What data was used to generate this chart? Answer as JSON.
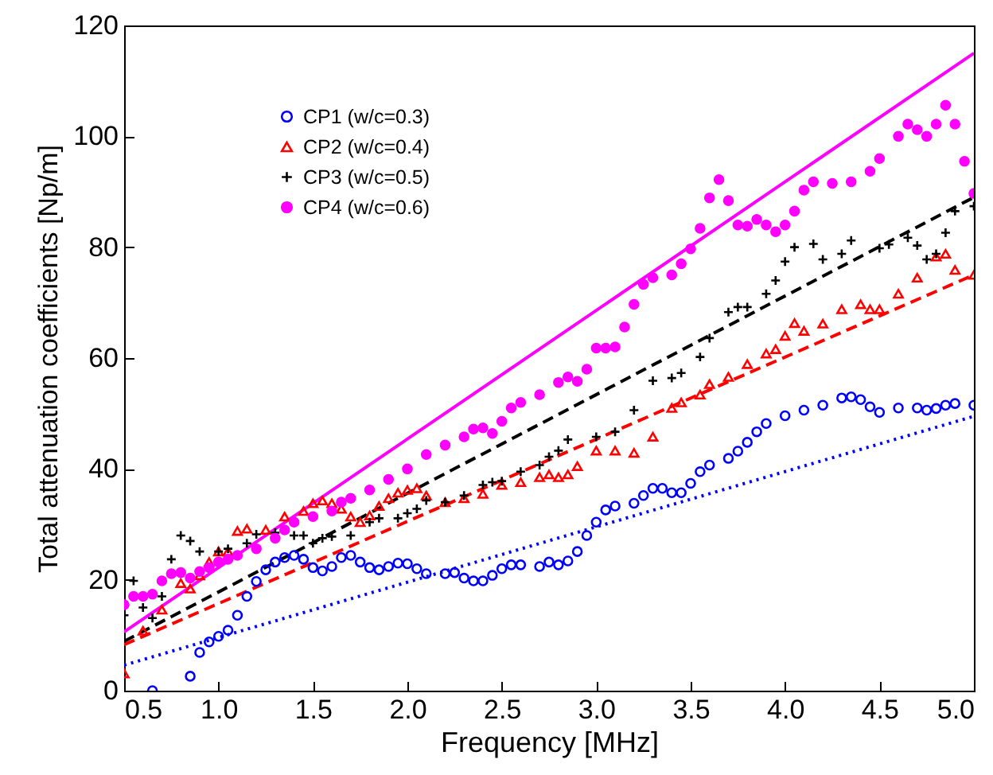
{
  "chart_data": {
    "type": "scatter",
    "xlabel": "Frequency [MHz]",
    "ylabel": "Total attenuation coefficients [Np/m]",
    "xlim": [
      0.5,
      5
    ],
    "xticks": [
      0.5,
      {
        "value": 1,
        "label": "1.0"
      },
      1.5,
      {
        "value": 2,
        "label": "2.0"
      },
      2.5,
      {
        "value": 3,
        "label": "3.0"
      },
      3.5,
      {
        "value": 4,
        "label": "4.0"
      },
      4.5,
      {
        "value": 5,
        "label": "5.0"
      }
    ],
    "ylim": [
      0,
      120
    ],
    "yticks": [
      0,
      20,
      40,
      60,
      80,
      100,
      120
    ],
    "grid": false,
    "legend": "top left",
    "series": [
      {
        "name": "CP1  (w/c=0.3)",
        "color": "#0000ff",
        "marker": "circle",
        "x": [
          0.65,
          0.85,
          0.9,
          0.95,
          1.0,
          1.05,
          1.1,
          1.15,
          1.2,
          1.25,
          1.3,
          1.35,
          1.4,
          1.45,
          1.5,
          1.55,
          1.6,
          1.65,
          1.7,
          1.75,
          1.8,
          1.85,
          1.9,
          1.95,
          2.0,
          2.05,
          2.1,
          2.2,
          2.25,
          2.3,
          2.35,
          2.4,
          2.45,
          2.5,
          2.55,
          2.6,
          2.7,
          2.75,
          2.8,
          2.85,
          2.9,
          2.95,
          3.0,
          3.05,
          3.1,
          3.2,
          3.25,
          3.3,
          3.35,
          3.4,
          3.45,
          3.5,
          3.55,
          3.6,
          3.7,
          3.75,
          3.8,
          3.85,
          3.9,
          4.0,
          4.1,
          4.2,
          4.3,
          4.35,
          4.4,
          4.45,
          4.5,
          4.6,
          4.7,
          4.75,
          4.8,
          4.85,
          4.9,
          5.0
        ],
        "values": [
          0,
          2.6,
          6.9,
          8.8,
          9.8,
          10.9,
          13.6,
          17,
          19.7,
          21.8,
          23.2,
          24,
          24.4,
          23.7,
          22.2,
          21.6,
          22.4,
          24,
          24.4,
          23.2,
          22.2,
          21.8,
          22.4,
          23,
          22.9,
          22,
          21.1,
          21.1,
          21.3,
          20.3,
          19.8,
          19.8,
          20.8,
          22,
          22.7,
          22.7,
          22.4,
          23.2,
          22.7,
          23.4,
          25.1,
          28,
          30.4,
          32.6,
          33.3,
          33.8,
          35.2,
          36.5,
          36.5,
          35.7,
          35.7,
          37.4,
          39.5,
          40.7,
          41.9,
          43.2,
          44.8,
          46.7,
          48.2,
          49.6,
          50.6,
          51.5,
          52.8,
          53,
          52.5,
          51.2,
          50.2,
          51,
          51,
          50.6,
          50.9,
          51.5,
          51.8,
          51.5
        ]
      },
      {
        "name": "CP2  (w/c=0.4)",
        "color": "#ff0000",
        "marker": "triangle",
        "x": [
          0.5,
          0.6,
          0.7,
          0.8,
          0.85,
          0.9,
          0.95,
          1.0,
          1.05,
          1.1,
          1.15,
          1.25,
          1.35,
          1.45,
          1.5,
          1.55,
          1.6,
          1.65,
          1.7,
          1.75,
          1.8,
          1.85,
          1.9,
          1.95,
          2.0,
          2.05,
          2.1,
          2.2,
          2.3,
          2.4,
          2.5,
          2.6,
          2.7,
          2.75,
          2.8,
          2.85,
          2.9,
          3.0,
          3.1,
          3.2,
          3.3,
          3.4,
          3.45,
          3.55,
          3.6,
          3.7,
          3.8,
          3.9,
          3.95,
          4.0,
          4.05,
          4.1,
          4.2,
          4.3,
          4.4,
          4.45,
          4.5,
          4.6,
          4.7,
          4.8,
          4.85,
          4.9,
          5.0
        ],
        "values": [
          3.1,
          10.8,
          14.6,
          19.4,
          18.4,
          20.8,
          23.2,
          25.1,
          25.1,
          28.8,
          29.2,
          29,
          31.4,
          32.4,
          33.8,
          34.3,
          33.8,
          32.8,
          31.4,
          30.4,
          31.6,
          33.3,
          34.7,
          35.7,
          36.2,
          36.5,
          35.2,
          34,
          34.7,
          35.5,
          37.1,
          37.6,
          38.5,
          39,
          38.5,
          39,
          40.5,
          43.3,
          43.3,
          42.9,
          45.8,
          51,
          52,
          53.4,
          55.3,
          56.6,
          58.9,
          60.8,
          61.6,
          64,
          66.3,
          64.9,
          66.2,
          68.8,
          69.7,
          68.8,
          68.8,
          71.6,
          74.5,
          78.3,
          78.8,
          75.9,
          75
        ]
      },
      {
        "name": "CP3  (w/c=0.5)",
        "color": "#000000",
        "marker": "cross",
        "x": [
          0.5,
          0.55,
          0.6,
          0.65,
          0.7,
          0.75,
          0.8,
          0.85,
          0.9,
          1.0,
          1.05,
          1.15,
          1.2,
          1.3,
          1.4,
          1.45,
          1.5,
          1.55,
          1.6,
          1.7,
          1.8,
          1.85,
          1.95,
          2.0,
          2.05,
          2.1,
          2.2,
          2.3,
          2.4,
          2.45,
          2.5,
          2.6,
          2.7,
          2.75,
          2.8,
          2.85,
          3.0,
          3.1,
          3.2,
          3.3,
          3.4,
          3.45,
          3.55,
          3.6,
          3.7,
          3.75,
          3.8,
          3.9,
          3.95,
          4.0,
          4.05,
          4.15,
          4.2,
          4.3,
          4.35,
          4.5,
          4.55,
          4.65,
          4.7,
          4.75,
          4.8,
          4.85,
          4.9,
          5.0
        ],
        "values": [
          13.6,
          19.8,
          15,
          13.1,
          17,
          23.7,
          28,
          27,
          25.1,
          25.1,
          25.6,
          26.6,
          28.2,
          28.5,
          28,
          28,
          26.6,
          27.5,
          27.8,
          28,
          30.4,
          31.1,
          31.1,
          32,
          32.8,
          34.3,
          34,
          35.2,
          37.1,
          37.6,
          37.8,
          39.5,
          40.7,
          42.2,
          43.3,
          45.3,
          45.8,
          46.7,
          50.6,
          55.9,
          56.4,
          57.3,
          60.2,
          63.6,
          68.3,
          69.2,
          69.2,
          71.6,
          74,
          77.4,
          80,
          80.6,
          77.8,
          78.8,
          81.2,
          79.8,
          80.5,
          81.7,
          80.3,
          77.8,
          78.8,
          82.6,
          86.5,
          87.4
        ]
      },
      {
        "name": "CP4  (w/c=0.6)",
        "color": "#ff00ff",
        "marker": "circle",
        "x": [
          0.5,
          0.55,
          0.6,
          0.65,
          0.7,
          0.75,
          0.8,
          0.85,
          0.9,
          0.95,
          1.0,
          1.05,
          1.1,
          1.2,
          1.3,
          1.35,
          1.4,
          1.5,
          1.6,
          1.65,
          1.7,
          1.8,
          1.9,
          2.0,
          2.1,
          2.2,
          2.3,
          2.35,
          2.4,
          2.45,
          2.5,
          2.55,
          2.6,
          2.7,
          2.8,
          2.85,
          2.9,
          2.95,
          3.0,
          3.05,
          3.1,
          3.15,
          3.2,
          3.25,
          3.3,
          3.4,
          3.45,
          3.5,
          3.55,
          3.6,
          3.65,
          3.7,
          3.75,
          3.8,
          3.85,
          3.9,
          3.95,
          4.0,
          4.05,
          4.1,
          4.15,
          4.25,
          4.35,
          4.45,
          4.5,
          4.6,
          4.65,
          4.7,
          4.75,
          4.8,
          4.85,
          4.9,
          4.95,
          5.0
        ],
        "values": [
          15.5,
          17,
          17,
          17.4,
          19.8,
          21.1,
          21.3,
          20.3,
          21.5,
          22.2,
          23.2,
          23.7,
          24.4,
          25.6,
          27.5,
          29,
          30.4,
          31.4,
          32.4,
          34,
          34.7,
          36.2,
          38.1,
          40,
          42.6,
          44.3,
          45.8,
          47.2,
          47.4,
          46.4,
          48.6,
          51,
          52,
          53.4,
          55.6,
          56.6,
          55.8,
          58,
          61.8,
          61.8,
          62,
          65.6,
          69.7,
          73.3,
          74.5,
          75,
          77,
          79.7,
          83.4,
          88.9,
          92.2,
          88.4,
          84,
          83.8,
          85,
          84,
          82.8,
          84,
          86.5,
          90.3,
          91.8,
          91.5,
          91.8,
          93.7,
          96,
          100,
          102.2,
          101.2,
          100,
          102.2,
          105.6,
          102.2,
          95.5,
          89.7
        ]
      },
      {
        "type": "line",
        "color": "#0000ff",
        "line_style": "dotted",
        "x": [
          0.5,
          5
        ],
        "values": [
          4.6,
          49.5
        ]
      },
      {
        "type": "line",
        "color": "#ff0000",
        "line_style": "dashed",
        "x": [
          0.5,
          5
        ],
        "values": [
          8.3,
          75
        ]
      },
      {
        "type": "line",
        "color": "#000000",
        "line_style": "dashed",
        "x": [
          0.5,
          5
        ],
        "values": [
          8.9,
          89
        ]
      },
      {
        "type": "line",
        "color": "#ff00ff",
        "line_style": "solid",
        "x": [
          0.5,
          5
        ],
        "values": [
          10.6,
          115
        ]
      }
    ]
  }
}
